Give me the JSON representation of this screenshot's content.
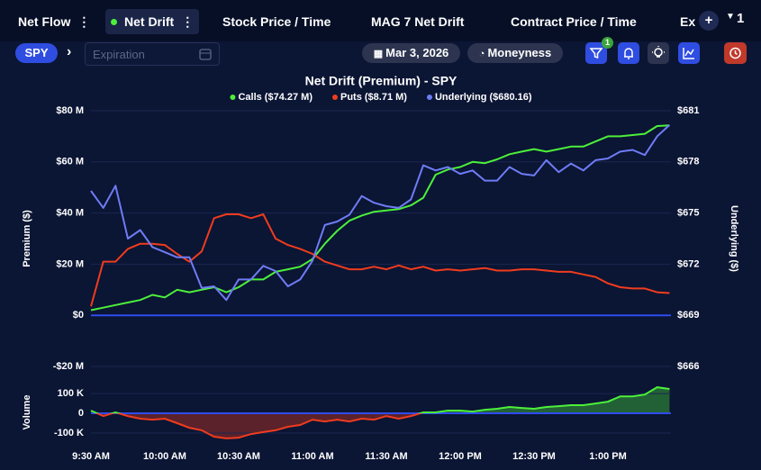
{
  "tabs": [
    {
      "label": "Net Flow",
      "active": false
    },
    {
      "label": "Net Drift",
      "active": true
    },
    {
      "label": "Stock Price / Time",
      "active": false
    },
    {
      "label": "MAG 7 Net Drift",
      "active": false
    },
    {
      "label": "Contract Price / Time",
      "active": false
    },
    {
      "label": "Ex",
      "active": false
    }
  ],
  "tabs_more": "1",
  "toolbar": {
    "symbol": "SPY",
    "expiration_placeholder": "Expiration",
    "date": "Mar 3, 2026",
    "moneyness": "Moneyness",
    "filter_badge": "1"
  },
  "chart_data": [
    {
      "type": "line",
      "title": "Net Drift (Premium) - SPY",
      "ylabel": "Premium ($)",
      "y2label": "Underlying ($)",
      "x": [
        570,
        575,
        580,
        585,
        590,
        595,
        600,
        605,
        610,
        615,
        620,
        625,
        630,
        635,
        640,
        645,
        650,
        655,
        660,
        665,
        670,
        675,
        680,
        685,
        690,
        695,
        700,
        705,
        710,
        715,
        720,
        725,
        730,
        735,
        740,
        745,
        750,
        755,
        760,
        765,
        770,
        775,
        780,
        785,
        790,
        795,
        800,
        805
      ],
      "xlim": [
        570,
        805.6
      ],
      "ylim": [
        -20,
        80
      ],
      "yticks": [
        {
          "value": 80,
          "label": "$80 M"
        },
        {
          "value": 60,
          "label": "$60 M"
        },
        {
          "value": 40,
          "label": "$40 M"
        },
        {
          "value": 20,
          "label": "$20 M"
        },
        {
          "value": 0,
          "label": "$0"
        },
        {
          "value": -20,
          "label": "-$20 M"
        }
      ],
      "y2lim": [
        666,
        681
      ],
      "y2ticks": [
        {
          "value": 681,
          "label": "$681"
        },
        {
          "value": 678,
          "label": "$678"
        },
        {
          "value": 675,
          "label": "$675"
        },
        {
          "value": 672,
          "label": "$672"
        },
        {
          "value": 669,
          "label": "$669"
        },
        {
          "value": 666,
          "label": "$666"
        }
      ],
      "grid": true,
      "series": [
        {
          "name": "Calls ($74.27 M)",
          "color": "#4cf03a",
          "values": [
            2,
            3,
            4,
            5,
            6,
            8,
            7,
            10,
            9,
            10,
            11,
            9,
            11,
            14,
            14,
            17,
            18,
            19,
            22,
            28,
            33,
            37,
            39,
            40.5,
            41,
            41.5,
            43,
            46,
            55,
            57,
            58,
            60,
            59.5,
            61,
            63,
            64,
            65,
            64,
            65,
            66,
            66,
            68,
            70,
            70,
            70.5,
            71,
            74,
            74.27
          ]
        },
        {
          "name": "Puts ($8.71 M)",
          "color": "#f03c1e",
          "values": [
            3.5,
            21,
            21,
            26,
            28,
            28,
            27.5,
            24,
            21,
            25,
            38,
            39.5,
            39.5,
            38,
            39.5,
            30,
            27.5,
            26,
            24,
            21,
            19.5,
            18,
            18,
            19,
            18,
            19.5,
            18,
            19,
            17.5,
            18,
            17.5,
            18,
            18.5,
            17.5,
            17.5,
            18,
            18,
            17.5,
            17,
            17,
            16,
            15,
            12.5,
            11,
            10.5,
            10.5,
            9,
            8.71
          ]
        },
        {
          "name": "Underlying ($680.16)",
          "color": "#6e7cf5",
          "axis": "y2",
          "values": [
            676.3,
            675.3,
            676.6,
            673.5,
            674,
            673,
            672.7,
            672.4,
            672.4,
            670.6,
            670.7,
            669.9,
            671.1,
            671.1,
            671.9,
            671.6,
            670.7,
            671.1,
            672.2,
            674.3,
            674.5,
            674.9,
            676,
            675.6,
            675.4,
            675.3,
            675.8,
            677.8,
            677.5,
            677.7,
            677.3,
            677.5,
            676.9,
            676.9,
            677.7,
            677.3,
            677.2,
            678.1,
            677.4,
            677.9,
            677.5,
            678.1,
            678.2,
            678.6,
            678.7,
            678.4,
            679.5,
            680.16
          ]
        }
      ]
    },
    {
      "type": "area",
      "ylabel": "Volume",
      "x": [
        570,
        575,
        580,
        585,
        590,
        595,
        600,
        605,
        610,
        615,
        620,
        625,
        630,
        635,
        640,
        645,
        650,
        655,
        660,
        665,
        670,
        675,
        680,
        685,
        690,
        695,
        700,
        705,
        710,
        715,
        720,
        725,
        730,
        735,
        740,
        745,
        750,
        755,
        760,
        765,
        770,
        775,
        780,
        785,
        790,
        795,
        800,
        805
      ],
      "xlim": [
        570,
        805.6
      ],
      "xticks": [
        {
          "value": 570,
          "label": "9:30 AM"
        },
        {
          "value": 600,
          "label": "10:00 AM"
        },
        {
          "value": 630,
          "label": "10:30 AM"
        },
        {
          "value": 660,
          "label": "11:00 AM"
        },
        {
          "value": 690,
          "label": "11:30 AM"
        },
        {
          "value": 720,
          "label": "12:00 PM"
        },
        {
          "value": 750,
          "label": "12:30 PM"
        },
        {
          "value": 780,
          "label": "1:00 PM"
        }
      ],
      "ylim": [
        -150000,
        155000
      ],
      "yticks": [
        {
          "value": 100000,
          "label": "100 K"
        },
        0,
        {
          "value": -100000,
          "label": "-100 K"
        }
      ],
      "grid": true,
      "colors": {
        "positive": "#4cf03a",
        "negative": "#f03c1e"
      },
      "values": [
        14000,
        -14000,
        5000,
        -14000,
        -27000,
        -32000,
        -27000,
        -50000,
        -73000,
        -86000,
        -118000,
        -127000,
        -123000,
        -105000,
        -95000,
        -86000,
        -68000,
        -59000,
        -32000,
        -41000,
        -32000,
        -41000,
        -27000,
        -32000,
        -14000,
        -27000,
        -14000,
        5000,
        5000,
        14000,
        14000,
        9000,
        18000,
        23000,
        32000,
        27000,
        23000,
        32000,
        36000,
        41000,
        41000,
        50000,
        59000,
        86000,
        86000,
        95000,
        132000,
        123000
      ]
    }
  ]
}
